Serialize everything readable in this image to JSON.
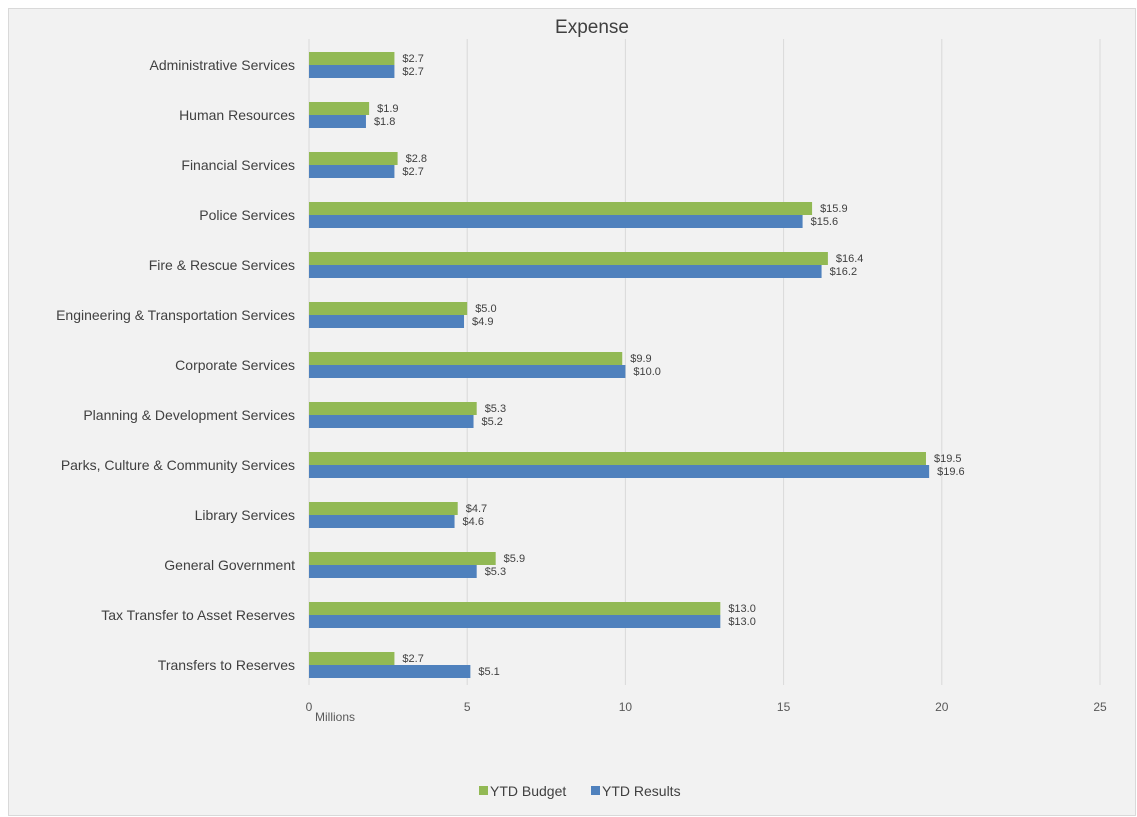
{
  "chart_data": {
    "type": "bar",
    "orientation": "horizontal",
    "title": "Expense",
    "unit_label": "Millions",
    "categories": [
      "Administrative Services",
      "Human Resources",
      "Financial Services",
      "Police Services",
      "Fire & Rescue Services",
      "Engineering & Transportation Services",
      "Corporate Services",
      "Planning & Development Services",
      "Parks, Culture & Community Services",
      "Library Services",
      "General Government",
      "Tax Transfer to Asset Reserves",
      "Transfers to Reserves"
    ],
    "series": [
      {
        "name": "YTD Budget",
        "color": "#92b954",
        "values": [
          2.7,
          1.9,
          2.8,
          15.9,
          16.4,
          5.0,
          9.9,
          5.3,
          19.5,
          4.7,
          5.9,
          13.0,
          2.7
        ],
        "labels": [
          "$2.7",
          "$1.9",
          "$2.8",
          "$15.9",
          "$16.4",
          "$5.0",
          "$9.9",
          "$5.3",
          "$19.5",
          "$4.7",
          "$5.9",
          "$13.0",
          "$2.7"
        ]
      },
      {
        "name": "YTD Results",
        "color": "#4f81bd",
        "values": [
          2.7,
          1.8,
          2.7,
          15.6,
          16.2,
          4.9,
          10.0,
          5.2,
          19.6,
          4.6,
          5.3,
          13.0,
          5.1
        ],
        "labels": [
          "$2.7",
          "$1.8",
          "$2.7",
          "$15.6",
          "$16.2",
          "$4.9",
          "$10.0",
          "$5.2",
          "$19.6",
          "$4.6",
          "$5.3",
          "$13.0",
          "$5.1"
        ]
      }
    ],
    "xlim": [
      0,
      25
    ],
    "xticks": [
      0,
      5,
      10,
      15,
      20,
      25
    ],
    "grid": true,
    "legend_position": "bottom"
  }
}
